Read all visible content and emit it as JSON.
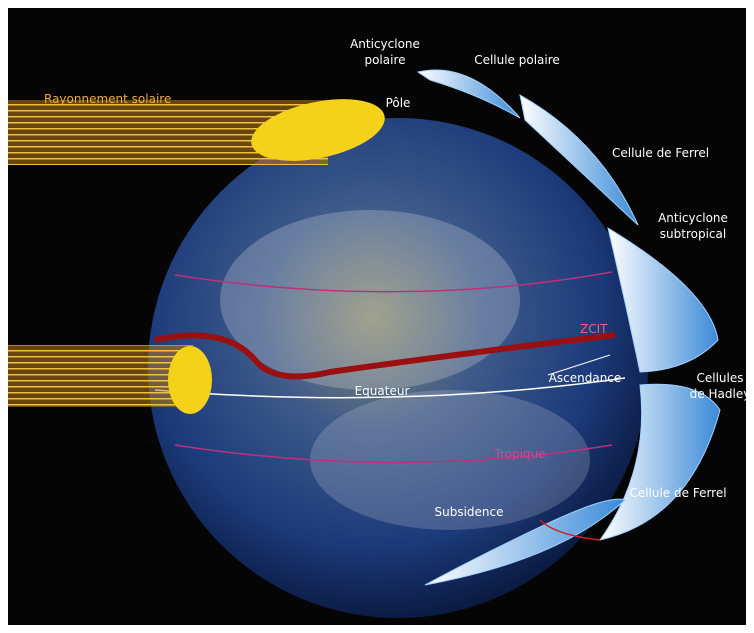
{
  "labels": [
    {
      "lines": [
        "Anticyclone",
        "polaire"
      ]
    },
    {
      "lines": [
        "Cellule polaire"
      ]
    },
    {
      "lines": [
        "Rayonnement solaire"
      ]
    },
    {
      "lines": [
        "Pôle"
      ]
    },
    {
      "lines": [
        "Cellule de Ferrel"
      ]
    },
    {
      "lines": [
        "Anticyclone",
        "subtropical"
      ]
    },
    {
      "lines": [
        "ZCIT"
      ]
    },
    {
      "lines": [
        "Ascendance"
      ]
    },
    {
      "lines": [
        "Equateur"
      ]
    },
    {
      "lines": [
        "Cellules",
        "de Hadley"
      ]
    },
    {
      "lines": [
        "Tropique"
      ]
    },
    {
      "lines": [
        "Cellule de Ferrel"
      ]
    },
    {
      "lines": [
        "Subsidence"
      ]
    }
  ]
}
